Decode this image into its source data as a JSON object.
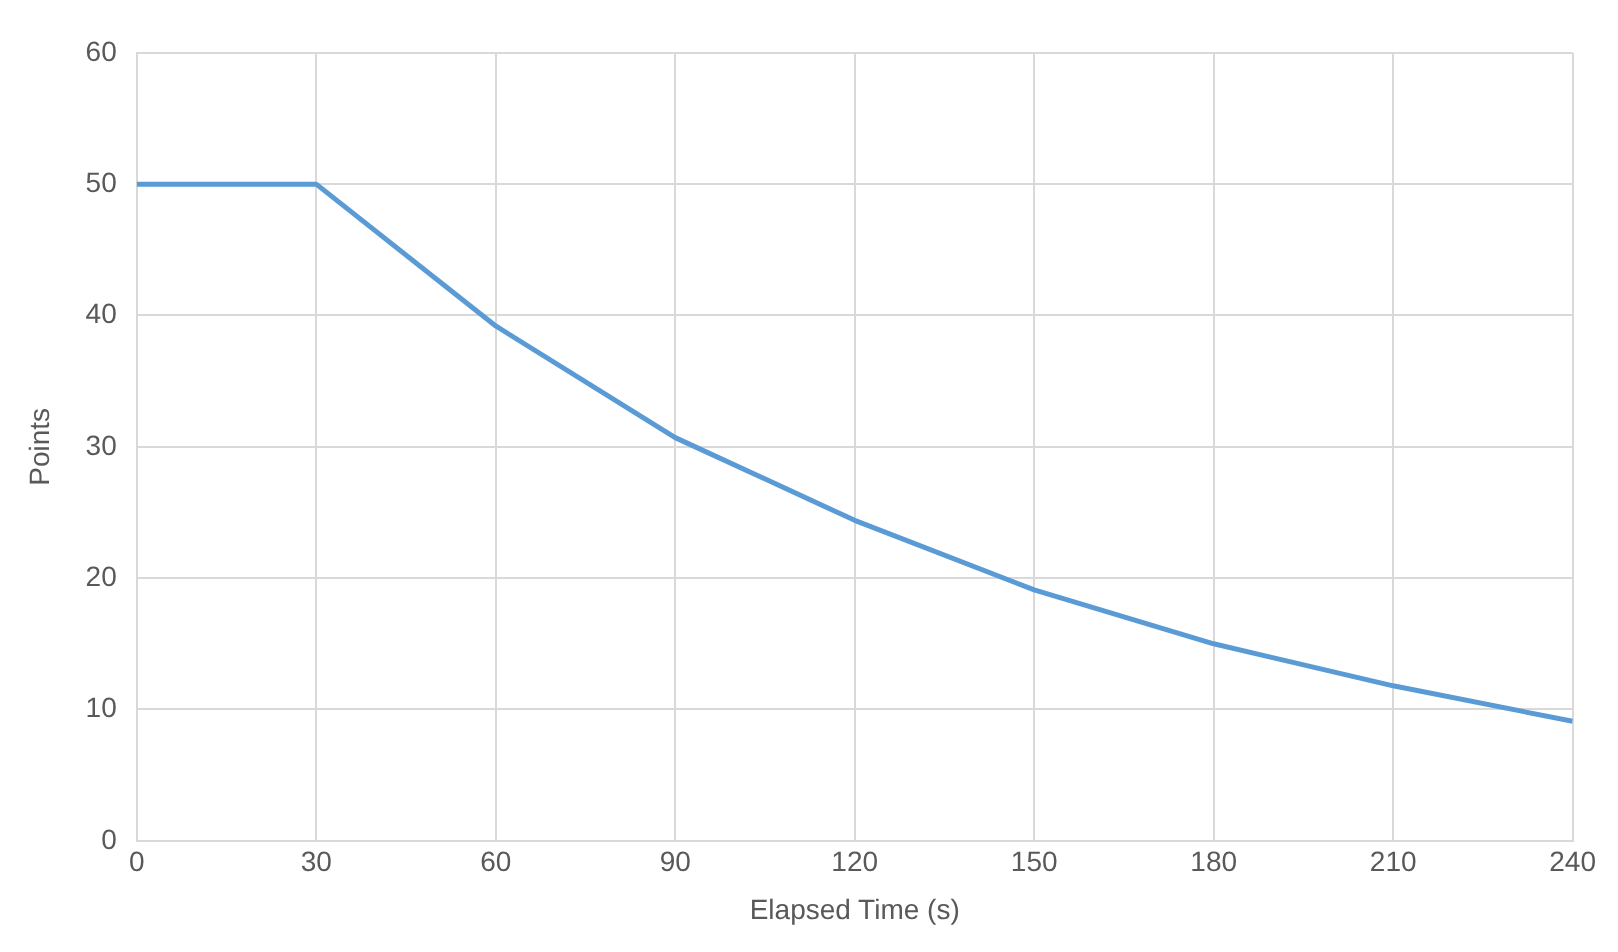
{
  "chart_data": {
    "type": "line",
    "xlabel": "Elapsed Time (s)",
    "ylabel": "Points",
    "x": [
      0,
      30,
      60,
      90,
      120,
      150,
      180,
      210,
      240
    ],
    "series": [
      {
        "color": "#5b9bd5",
        "values": [
          50,
          50,
          39.2,
          30.7,
          24.4,
          19.1,
          15,
          11.8,
          9.1
        ]
      }
    ],
    "xlim": [
      0,
      240
    ],
    "xticks": [
      0,
      30,
      60,
      90,
      120,
      150,
      180,
      210,
      240
    ],
    "ylim": [
      0,
      60
    ],
    "yticks": [
      0,
      10,
      20,
      30,
      40,
      50,
      60
    ],
    "grid": true,
    "legend": false,
    "marker": "none",
    "line_style": "solid"
  }
}
